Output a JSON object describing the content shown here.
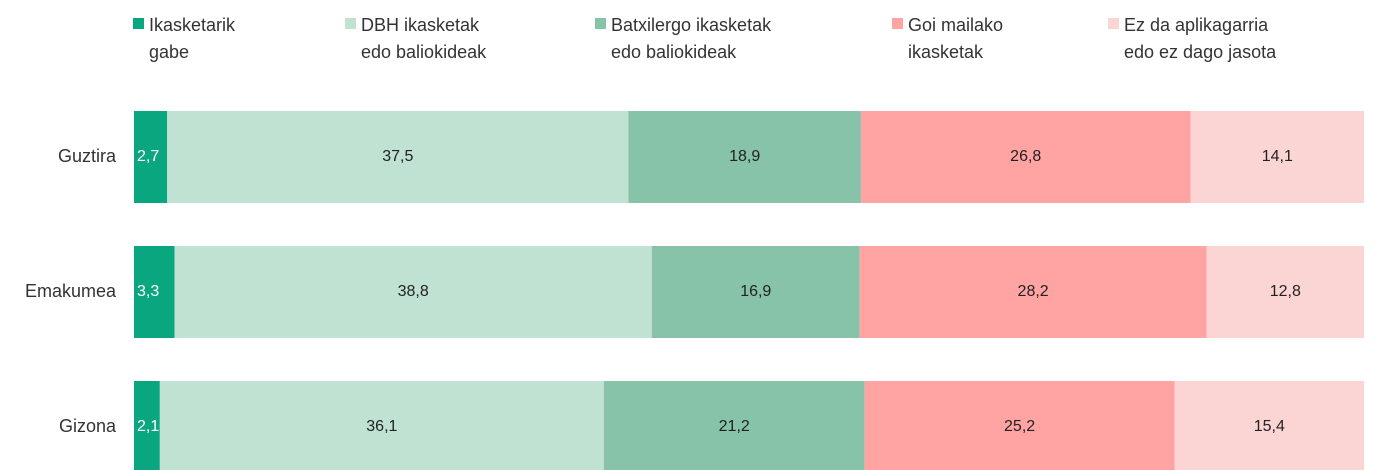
{
  "chart_data": {
    "type": "stacked-bar-horizontal",
    "categories": [
      "Guztira",
      "Emakumea",
      "Gizona"
    ],
    "xlim": [
      0,
      100
    ],
    "legend": "top-left",
    "series": [
      {
        "name": "Ikasketarik gabe",
        "color": "#0aa67f",
        "values": [
          2.7,
          3.3,
          2.1
        ],
        "value_labels": [
          "2,7",
          "3,3",
          "2,1"
        ]
      },
      {
        "name": "DBH ikasketak edo baliokideak",
        "color": "#bfe2d3",
        "values": [
          37.5,
          38.8,
          36.1
        ],
        "value_labels": [
          "37,5",
          "38,8",
          "36,1"
        ]
      },
      {
        "name": "Batxilergo ikasketak edo baliokideak",
        "color": "#86c3a8",
        "values": [
          18.9,
          16.9,
          21.2
        ],
        "value_labels": [
          "18,9",
          "16,9",
          "21,2"
        ]
      },
      {
        "name": "Goi mailako ikasketak",
        "color": "#ffa4a2",
        "values": [
          26.8,
          28.2,
          25.2
        ],
        "value_labels": [
          "26,8",
          "28,2",
          "25,2"
        ]
      },
      {
        "name": "Ez da aplikagarria edo ez dago jasota",
        "color": "#fad5d3",
        "values": [
          14.1,
          12.8,
          15.4
        ],
        "value_labels": [
          "14,1",
          "12,8",
          "15,4"
        ]
      }
    ]
  }
}
